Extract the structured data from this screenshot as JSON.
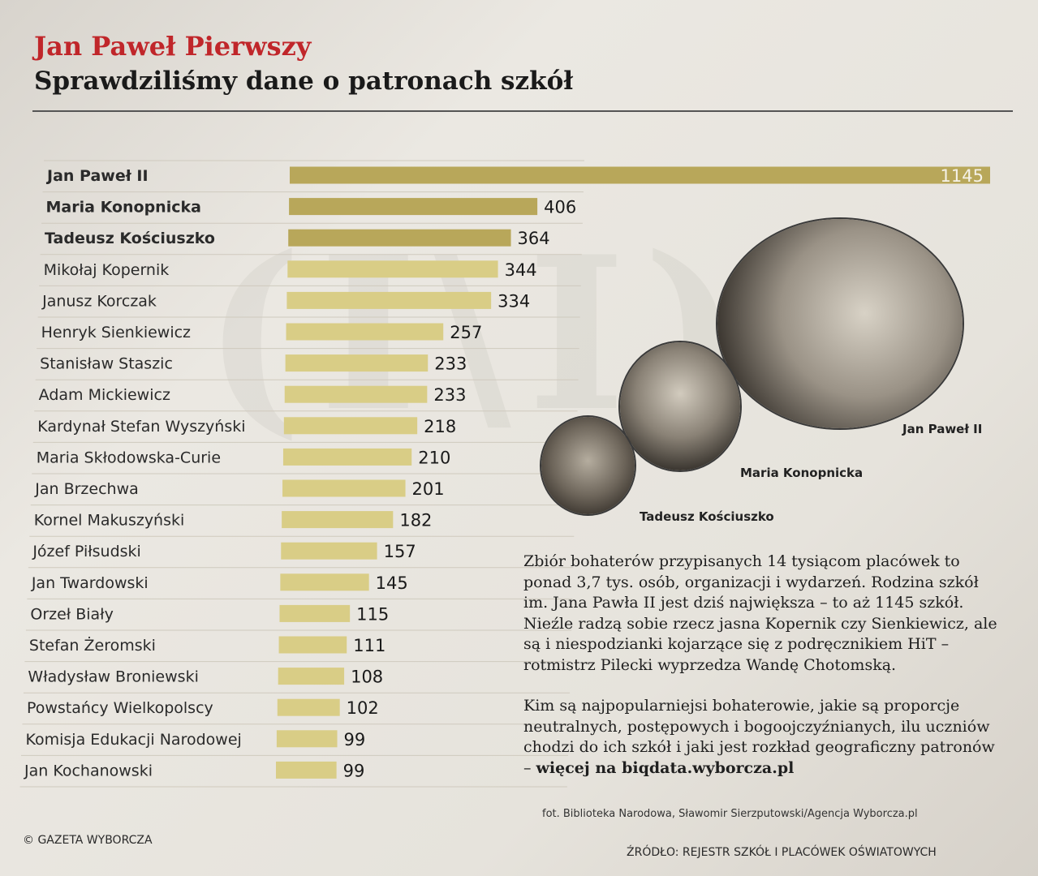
{
  "header": {
    "kicker": "Jan Paweł Pierwszy",
    "title": "Sprawdziliśmy dane o patronach szkół"
  },
  "chart_data": {
    "type": "bar",
    "orientation": "horizontal",
    "categories": [
      "Jan Paweł II",
      "Maria Konopnicka",
      "Tadeusz Kościuszko",
      "Mikołaj Kopernik",
      "Janusz Korczak",
      "Henryk Sienkiewicz",
      "Stanisław Staszic",
      "Adam Mickiewicz",
      "Kardynał Stefan Wyszyński",
      "Maria Skłodowska-Curie",
      "Jan Brzechwa",
      "Kornel Makuszyński",
      "Józef Piłsudski",
      "Jan Twardowski",
      "Orzeł Biały",
      "Stefan Żeromski",
      "Władysław Broniewski",
      "Powstańcy Wielkopolscy",
      "Komisja Edukacji Narodowej",
      "Jan Kochanowski"
    ],
    "values": [
      1145,
      406,
      364,
      344,
      334,
      257,
      233,
      233,
      218,
      210,
      201,
      182,
      157,
      145,
      115,
      111,
      108,
      102,
      99,
      99
    ],
    "value_labels": [
      "1145",
      "406",
      "364",
      "344",
      "334",
      "257",
      "233",
      "233",
      "218",
      "210",
      "201",
      "182",
      "157",
      "145",
      "115",
      "111",
      "108",
      "102",
      "99",
      "99"
    ],
    "highlighted_count": 3,
    "colors": {
      "highlight": "#b8a75a",
      "highlight_dark": "#a8974a",
      "normal": "#d9cd86"
    },
    "xlim": [
      0,
      1145
    ],
    "grid": false,
    "legend": "none"
  },
  "photos": [
    {
      "caption": "Jan Paweł II",
      "tone": "#8a8378"
    },
    {
      "caption": "Maria Konopnicka",
      "tone": "#6e665c"
    },
    {
      "caption": "Tadeusz Kościuszko",
      "tone": "#5f584f"
    }
  ],
  "description": {
    "paragraph1": "Zbiór bohaterów przypisanych 14 tysiącom placówek to ponad 3,7 tys. osób, organizacji i wydarzeń. Rodzina szkół im. Jana Pawła II jest dziś największa – to aż 1145 szkół. Nieźle radzą sobie rzecz jasna Kopernik czy Sienkiewicz, ale są i niespodzianki kojarzące się z podręcznikiem HiT – rotmistrz Pilecki wyprzedza Wandę Chotomską.",
    "paragraph2_text": "Kim są najpopularniejsi bohaterowie, jakie są proporcje neutralnych, postępowych i bogoojczyźnianych, ilu uczniów chodzi do ich szkół i jaki jest rozkład geograficzny patronów – ",
    "paragraph2_link": "więcej na biqdata.wyborcza.pl"
  },
  "photo_credit": "fot. Biblioteka Narodowa, Sławomir Sierzputowski/Agencja Wyborcza.pl",
  "footer": {
    "copyright": "© GAZETA WYBORCZA",
    "source": "ŹRÓDŁO: REJESTR SZKÓŁ I PLACÓWEK OŚWIATOWYCH"
  }
}
